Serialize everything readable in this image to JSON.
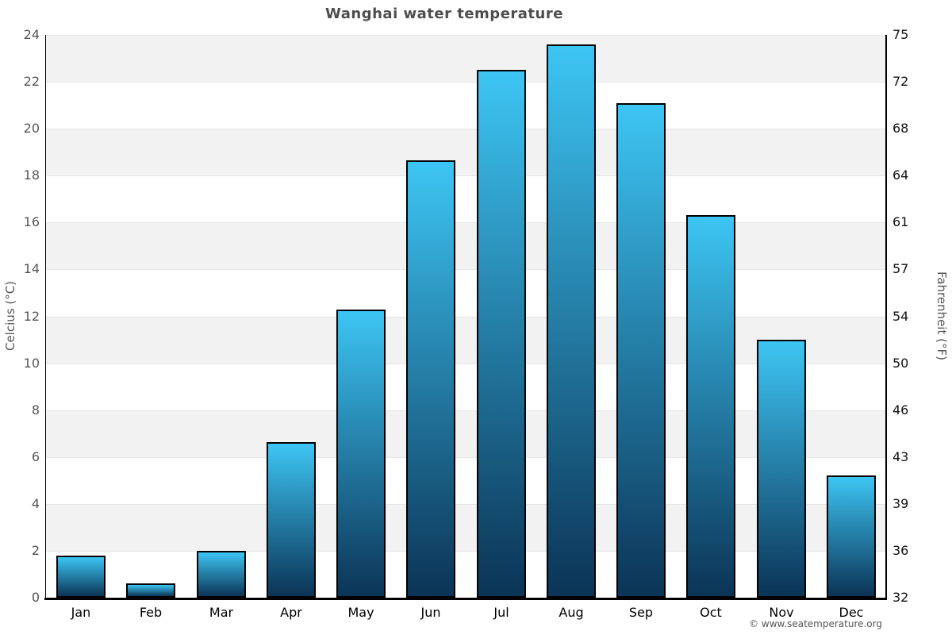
{
  "chart_data": {
    "type": "bar",
    "title": "Wanghai water temperature",
    "categories": [
      "Jan",
      "Feb",
      "Mar",
      "Apr",
      "May",
      "Jun",
      "Jul",
      "Aug",
      "Sep",
      "Oct",
      "Nov",
      "Dec"
    ],
    "values": [
      1.8,
      0.6,
      2.0,
      6.65,
      12.3,
      18.65,
      22.5,
      23.6,
      21.1,
      16.3,
      11.0,
      5.2
    ],
    "values_unit": "°C",
    "xlabel": "",
    "ylabel_left": "Celcius (°C)",
    "ylabel_right": "Fahrenheit (°F)",
    "ylim": [
      0,
      24
    ],
    "yticks_celsius": [
      0,
      2,
      4,
      6,
      8,
      10,
      12,
      14,
      16,
      18,
      20,
      22,
      24
    ],
    "yticks_fahrenheit": [
      32,
      36,
      39,
      43,
      46,
      50,
      54,
      57,
      61,
      64,
      68,
      72,
      75
    ],
    "grid": "horizontal alternating bands",
    "legend": "none"
  },
  "footer": {
    "credit": "© www.seatemperature.org"
  },
  "colors": {
    "bar_gradient_top": "#3dc5f3",
    "bar_gradient_bottom": "#0b3456",
    "bar_border": "#000000",
    "band_gray": "#f2f2f2",
    "band_white": "#ffffff",
    "gridline": "#e6e6e6",
    "axis_line": "#000000",
    "title_text": "#4d4d4d",
    "left_tick_text": "#555555",
    "right_tick_text": "#111111",
    "month_text": "#000000",
    "footer_text": "#555555"
  }
}
